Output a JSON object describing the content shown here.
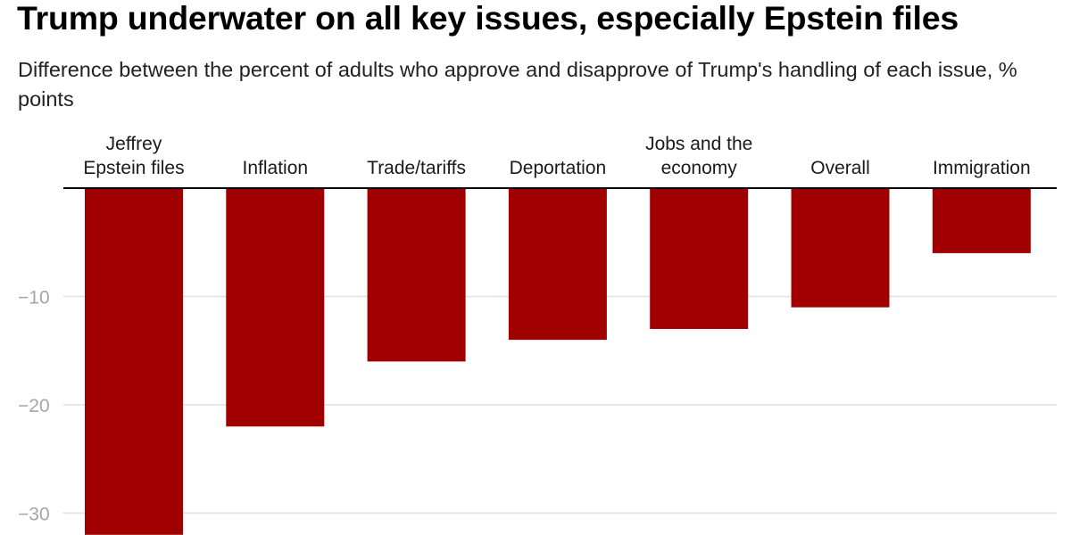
{
  "chart_data": {
    "type": "bar",
    "title": "Trump underwater on all key issues, especially Epstein files",
    "subtitle": "Difference between the percent of adults who approve and disapprove of Trump's handling of each issue, % points",
    "categories": [
      [
        "Jeffrey",
        "Epstein files"
      ],
      [
        "Inflation"
      ],
      [
        "Trade/tariffs"
      ],
      [
        "Deportation"
      ],
      [
        "Jobs and the",
        "economy"
      ],
      [
        "Overall"
      ],
      [
        "Immigration"
      ]
    ],
    "values": [
      -32,
      -22,
      -16,
      -14,
      -13,
      -11,
      -6
    ],
    "yticks": [
      -10,
      -20,
      -30
    ],
    "ytick_labels": [
      "−10",
      "−20",
      "−30"
    ],
    "ylim": [
      -32,
      0
    ],
    "xlabel": "",
    "ylabel": "",
    "grid": true,
    "bar_color": "#a00000",
    "grid_color": "#e0e0e0",
    "axis_color": "#000000"
  }
}
